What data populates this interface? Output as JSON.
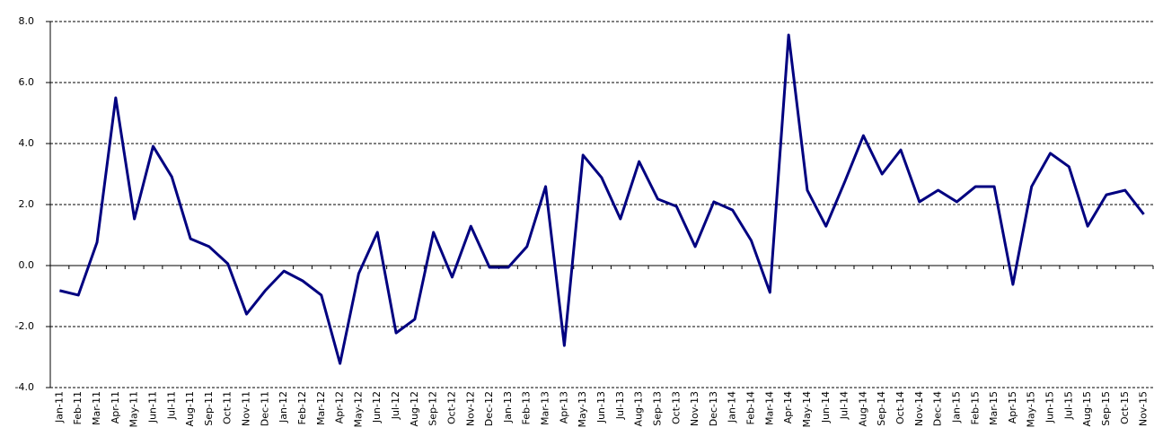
{
  "chart_data": {
    "type": "line",
    "categories": [
      "Jan-11",
      "Feb-11",
      "Mar-11",
      "Apr-11",
      "May-11",
      "Jun-11",
      "Jul-11",
      "Aug-11",
      "Sep-11",
      "Oct-11",
      "Nov-11",
      "Dec-11",
      "Jan-12",
      "Feb-12",
      "Mar-12",
      "Apr-12",
      "May-12",
      "Jun-12",
      "Jul-12",
      "Aug-12",
      "Sep-12",
      "Oct-12",
      "Nov-12",
      "Dec-12",
      "Jan-13",
      "Feb-13",
      "Mar-13",
      "Apr-13",
      "May-13",
      "Jun-13",
      "Jul-13",
      "Aug-13",
      "Sep-13",
      "Oct-13",
      "Nov-13",
      "Dec-13",
      "Jan-14",
      "Feb-14",
      "Mar-14",
      "Apr-14",
      "May-14",
      "Jun-14",
      "Jul-14",
      "Aug-14",
      "Sep-14",
      "Oct-14",
      "Nov-14",
      "Dec-14",
      "Jan-15",
      "Feb-15",
      "Mar-15",
      "Apr-15",
      "May-15",
      "Jun-15",
      "Jul-15",
      "Aug-15",
      "Sep-15",
      "Oct-15",
      "Nov-15"
    ],
    "values": [
      -0.82,
      -0.97,
      0.76,
      5.5,
      1.53,
      3.91,
      2.91,
      0.88,
      0.62,
      0.06,
      -1.59,
      -0.82,
      -0.18,
      -0.5,
      -0.97,
      -3.21,
      -0.26,
      1.09,
      -2.21,
      -1.76,
      1.09,
      -0.38,
      1.29,
      -0.06,
      -0.06,
      0.62,
      2.59,
      -2.62,
      3.62,
      2.88,
      1.53,
      3.41,
      2.18,
      1.94,
      0.62,
      2.09,
      1.82,
      0.82,
      -0.88,
      7.56,
      2.47,
      1.29,
      2.74,
      4.26,
      3.0,
      3.79,
      2.09,
      2.47,
      2.09,
      2.59,
      2.59,
      -0.62,
      2.59,
      3.68,
      3.24,
      1.29,
      2.32,
      2.47,
      1.68
    ],
    "color": "#000080",
    "ylim": [
      -4,
      8
    ],
    "yticks": [
      {
        "value": -4,
        "label": "-4.0"
      },
      {
        "value": -2,
        "label": "-2.0"
      },
      {
        "value": 0,
        "label": "0.0"
      },
      {
        "value": 2,
        "label": "2.0"
      },
      {
        "value": 4,
        "label": "4.0"
      },
      {
        "value": 6,
        "label": "6.0"
      },
      {
        "value": 8,
        "label": "8.0"
      }
    ],
    "grid": true
  }
}
